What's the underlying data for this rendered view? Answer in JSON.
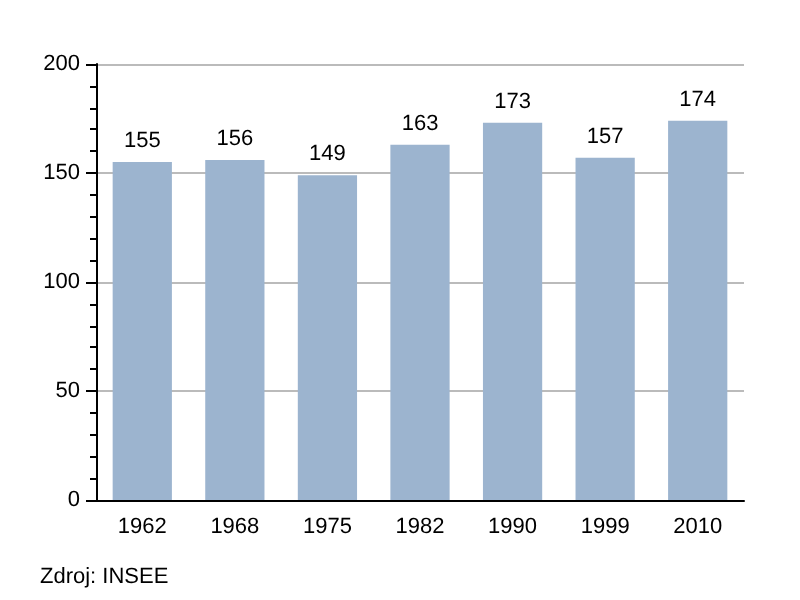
{
  "chart_data": {
    "type": "bar",
    "categories": [
      "1962",
      "1968",
      "1975",
      "1982",
      "1990",
      "1999",
      "2010"
    ],
    "values": [
      155,
      156,
      149,
      163,
      173,
      157,
      174
    ],
    "color": "#9cb4cf",
    "ylim": [
      0,
      200
    ],
    "yticks": [
      0,
      50,
      100,
      150,
      200
    ],
    "grid": "y",
    "data_labels": true,
    "annotations": [
      "Zdroj: INSEE"
    ]
  }
}
